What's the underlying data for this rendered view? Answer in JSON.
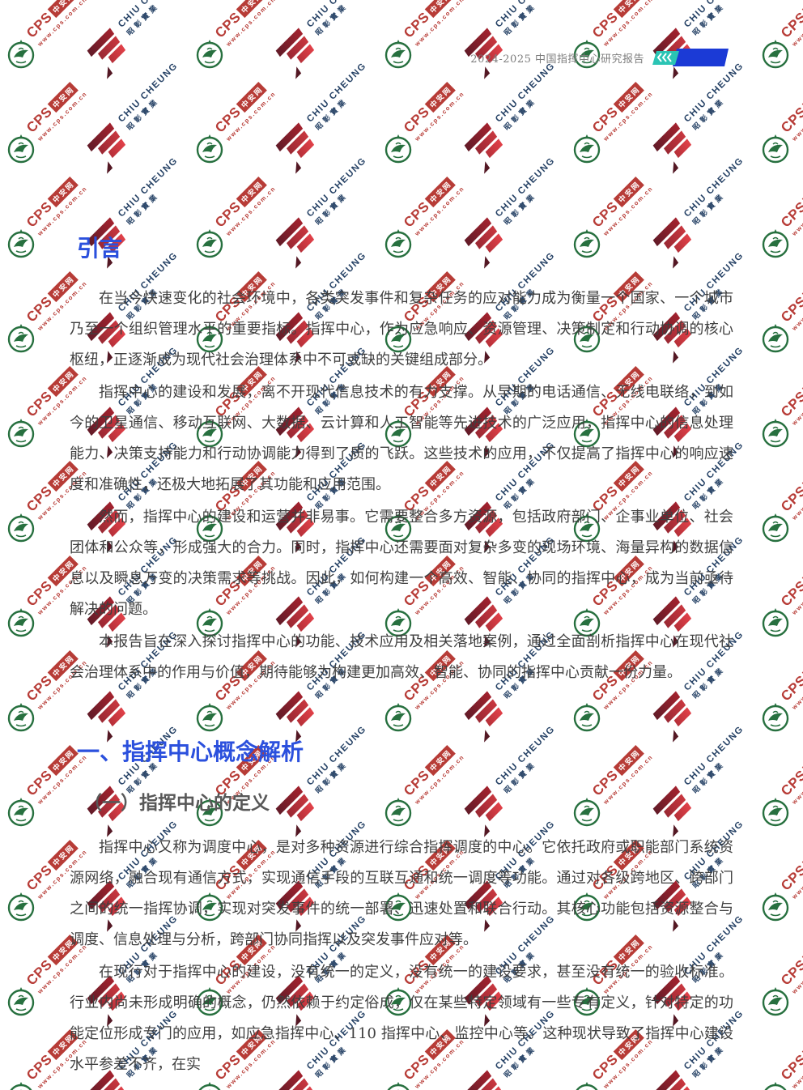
{
  "header": {
    "report_title": "2024-2025 中国指挥中心研究报告"
  },
  "logo": {
    "teal": "#2bc4b4",
    "blue": "#1b3ad6"
  },
  "document": {
    "intro": {
      "heading": "引言",
      "paragraphs": [
        "在当今快速变化的社会环境中，各类突发事件和复杂任务的应对能力成为衡量一个国家、一个城市乃至一个组织管理水平的重要指标。指挥中心，作为应急响应、资源管理、决策制定和行动协调的核心枢纽，正逐渐成为现代社会治理体系中不可或缺的关键组成部分。",
        "指挥中心的建设和发展，离不开现代信息技术的有力支撑。从早期的电话通信、无线电联络，到如今的卫星通信、移动互联网、大数据、云计算和人工智能等先进技术的广泛应用，指挥中心的信息处理能力、决策支持能力和行动协调能力得到了质的飞跃。这些技术的应用，不仅提高了指挥中心的响应速度和准确性，还极大地拓展了其功能和应用范围。",
        "然而，指挥中心的建设和运营并非易事。它需要整合多方资源，包括政府部门、企事业单位、社会团体和公众等，形成强大的合力。同时，指挥中心还需要面对复杂多变的现场环境、海量异构的数据信息以及瞬息万变的决策需求等挑战。因此，如何构建一个高效、智能、协同的指挥中心，成为当前亟待解决的问题。",
        "本报告旨在深入探讨指挥中心的功能、技术应用及相关落地案例，通过全面剖析指挥中心在现代社会治理体系中的作用与价值，期待能够为构建更加高效、智能、协同的指挥中心贡献一份力量。"
      ]
    },
    "section1": {
      "heading": "一、指挥中心概念解析",
      "subheading": "（一）指挥中心的定义",
      "paragraphs": [
        "指挥中心又称为调度中心，是对多种资源进行综合指挥调度的中心。它依托政府或职能部门系统资源网络，融合现有通信方式，实现通信手段的互联互通和统一调度等功能。通过对各级跨地区、跨部门之间的统一指挥协调，实现对突发事件的统一部署、迅速处置和联合行动。其核心功能包括资源整合与调度、信息处理与分析，跨部门协同指挥以及突发事件应对等。",
        "在现行对于指挥中心的建设，没有统一的定义，没有统一的建设要求，甚至没有统一的验收标准。行业内尚未形成明确的概念，仍然依赖于约定俗成，仅在某些特定领域有一些专有定义，针对特定的功能定位形成专门的应用，如应急指挥中心、110 指挥中心、监控中心等。这种现状导致了指挥中心建设水平参差不齐，在实"
      ]
    }
  },
  "watermark": {
    "cps": {
      "word": "CPS",
      "badge": "中安网",
      "url": "www.cps.com.cn",
      "color": "#b5352f"
    },
    "chiu": {
      "en": "CHIU CHEUNG",
      "cn": "昭彰實業",
      "color": "#1d3a5f"
    },
    "emblem_color": "#1f6b38",
    "colors": {
      "head_blue": "#2b50dd"
    }
  }
}
